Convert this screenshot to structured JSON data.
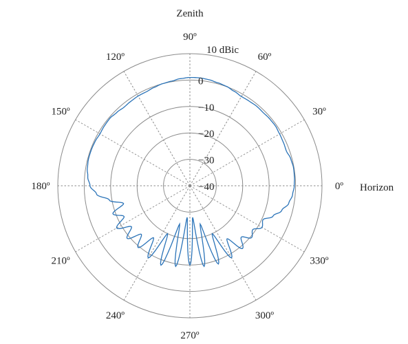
{
  "chart_data": {
    "type": "line",
    "subtype": "polar",
    "annotations": {
      "top": "Zenith",
      "right": "Horizon"
    },
    "radial_unit": "10 dBic",
    "radial_ticks": [
      "0",
      "−10",
      "−20",
      "−30",
      "−40"
    ],
    "radial_range": [
      -40,
      10
    ],
    "angle_labels": [
      "0º",
      "30º",
      "60º",
      "90º",
      "120º",
      "150º",
      "180º",
      "210º",
      "240º",
      "270º",
      "300º",
      "330º"
    ],
    "grid": true,
    "colors": {
      "series": "#2a73b8",
      "grid": "#8a8a8a"
    },
    "series": [
      {
        "angles": [
          0,
          5,
          10,
          15,
          20,
          25,
          30,
          35,
          40,
          45,
          50,
          55,
          60,
          65,
          70,
          75,
          80,
          85,
          90,
          95,
          100,
          105,
          110,
          115,
          120,
          125,
          130,
          135,
          140,
          145,
          150,
          155,
          160,
          165,
          170,
          175,
          180,
          185,
          190,
          195,
          200,
          205,
          210,
          215,
          220,
          225,
          230,
          235,
          240,
          245,
          250,
          255,
          260,
          265,
          270,
          275,
          280,
          285,
          290,
          295,
          300,
          305,
          310,
          315,
          320,
          325,
          330,
          335,
          340,
          345,
          350,
          355
        ],
        "gain_dBic": [
          -0.5,
          -0.3,
          -0.2,
          -0.5,
          -1.2,
          -1.0,
          -0.8,
          -0.5,
          -0.6,
          -0.8,
          -0.7,
          -0.9,
          -1.0,
          -0.5,
          0.1,
          0.4,
          0.8,
          1.0,
          1.0,
          0.7,
          0.2,
          0.0,
          -0.4,
          -0.8,
          -0.8,
          -1.0,
          -1.2,
          -0.8,
          -0.4,
          -0.5,
          -0.7,
          -0.4,
          -0.3,
          -0.3,
          -0.6,
          -1.2,
          -2.2,
          -4.5,
          -9.0,
          -14.0,
          -9.0,
          -12.5,
          -8.0,
          -13.0,
          -9.0,
          -14.0,
          -9.5,
          -16.0,
          -8.5,
          -20.0,
          -8.0,
          -25.0,
          -9.0,
          -28.0,
          -10.0,
          -28.0,
          -9.0,
          -25.0,
          -8.5,
          -20.0,
          -8.5,
          -15.5,
          -9.0,
          -12.5,
          -9.5,
          -11.0,
          -8.5,
          -9.5,
          -6.5,
          -4.0,
          -2.0,
          -1.0
        ]
      }
    ]
  }
}
